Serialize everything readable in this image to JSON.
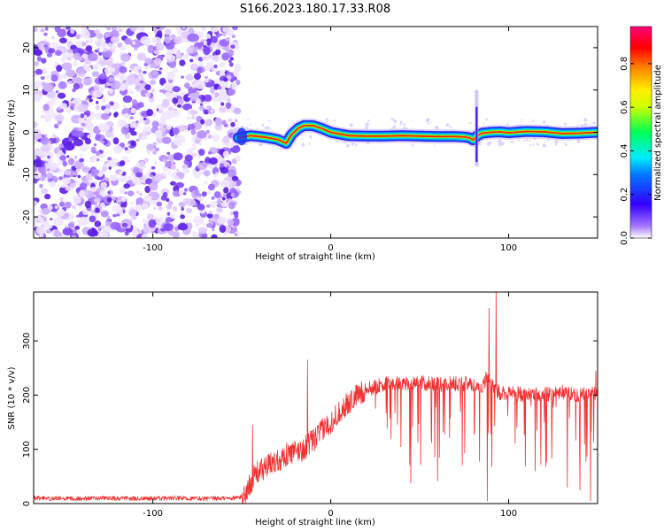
{
  "title": "S166.2023.180.17.33.R08",
  "chart_data": [
    {
      "type": "heatmap",
      "xlabel": "Height of straight line (km)",
      "ylabel": "Frequency (Hz)",
      "xlim": [
        -167,
        150
      ],
      "ylim": [
        -25,
        25
      ],
      "xticks": [
        -100,
        0,
        100
      ],
      "xtick_labels": [
        "-100",
        "0",
        "100"
      ],
      "yticks": [
        -20,
        -10,
        0,
        10,
        20
      ],
      "ytick_labels": [
        "-20",
        "-10",
        "0",
        "10",
        "20"
      ],
      "noise_region_x": [
        -167,
        -52
      ],
      "ridge": {
        "x": [
          -52,
          -45,
          -40,
          -35,
          -30,
          -25,
          -22,
          -18,
          -15,
          -10,
          -5,
          0,
          10,
          20,
          30,
          40,
          50,
          60,
          70,
          75,
          78,
          80,
          82,
          85,
          90,
          95,
          100,
          110,
          120,
          130,
          140,
          150
        ],
        "freq": [
          -1.3,
          -0.8,
          -1,
          -1.3,
          -1.7,
          -2.6,
          -0.5,
          1,
          1.6,
          1.6,
          0.9,
          0,
          -0.8,
          -0.9,
          -0.9,
          -0.8,
          -0.9,
          -1,
          -1,
          -1.1,
          -1.3,
          -1.8,
          -0.9,
          -0.2,
          0,
          0.1,
          -0.1,
          0.2,
          0.1,
          -0.3,
          -0.2,
          0
        ]
      },
      "colorbar": {
        "label": "Normalized spectral amplitude",
        "ticks": [
          0.0,
          0.2,
          0.4,
          0.6,
          0.8
        ],
        "tick_labels": [
          "0.0",
          "0.2",
          "0.4",
          "0.6",
          "0.8"
        ],
        "range": [
          0,
          0.97
        ]
      }
    },
    {
      "type": "line",
      "xlabel": "Height of straight line (km)",
      "ylabel": "SNR (10 * v/v)",
      "xlim": [
        -167,
        150
      ],
      "ylim": [
        0,
        390
      ],
      "xticks": [
        -100,
        0,
        100
      ],
      "xtick_labels": [
        "-100",
        "0",
        "100"
      ],
      "yticks": [
        0,
        100,
        200,
        300
      ],
      "ytick_labels": [
        "0",
        "100",
        "200",
        "300"
      ],
      "color": "#ee3333",
      "series": [
        {
          "x": [
            -167,
            -150,
            -130,
            -110,
            -90,
            -70,
            -55,
            -50,
            -47,
            -45,
            -42,
            -40,
            -35,
            -30,
            -25,
            -20,
            -15,
            -13,
            -10,
            -5,
            0,
            5,
            10,
            15,
            20,
            25,
            30,
            40,
            50,
            60,
            70,
            80,
            85,
            88,
            90,
            92,
            95,
            100,
            110,
            120,
            130,
            140,
            150
          ],
          "y": [
            10,
            9,
            10,
            9,
            10,
            9,
            10,
            12,
            20,
            40,
            55,
            60,
            70,
            80,
            90,
            95,
            100,
            110,
            115,
            135,
            150,
            170,
            185,
            200,
            210,
            215,
            220,
            222,
            222,
            220,
            222,
            220,
            215,
            235,
            220,
            210,
            205,
            205,
            200,
            200,
            205,
            200,
            205
          ]
        }
      ],
      "spikes": [
        {
          "x": -44,
          "y": 145
        },
        {
          "x": -13,
          "y": 265
        },
        {
          "x": 89,
          "y": 360
        },
        {
          "x": 93,
          "y": 400
        },
        {
          "x": 149,
          "y": 245
        }
      ],
      "dips": [
        {
          "x": 45,
          "y": 38
        },
        {
          "x": 60,
          "y": 42
        },
        {
          "x": 88,
          "y": 5
        },
        {
          "x": 115,
          "y": 60
        },
        {
          "x": 125,
          "y": 15
        },
        {
          "x": 133,
          "y": 30
        },
        {
          "x": 140,
          "y": 25
        },
        {
          "x": 146,
          "y": 5
        }
      ]
    }
  ]
}
